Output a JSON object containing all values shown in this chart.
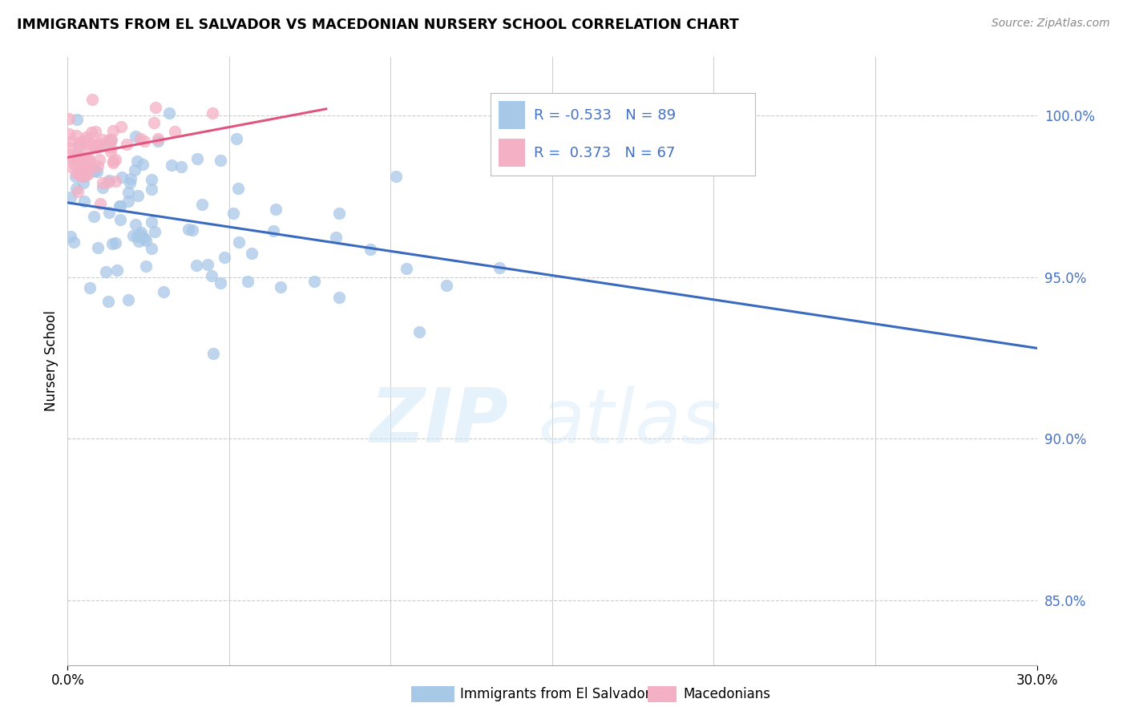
{
  "title": "IMMIGRANTS FROM EL SALVADOR VS MACEDONIAN NURSERY SCHOOL CORRELATION CHART",
  "source": "Source: ZipAtlas.com",
  "ylabel": "Nursery School",
  "legend_label1": "Immigrants from El Salvador",
  "legend_label2": "Macedonians",
  "R1": -0.533,
  "N1": 89,
  "R2": 0.373,
  "N2": 67,
  "color_blue": "#a8c8e8",
  "color_pink": "#f4b0c4",
  "line_blue": "#3a6abf",
  "line_pink": "#e05580",
  "text_color_blue": "#4472c4",
  "xlim": [
    0,
    30
  ],
  "ylim": [
    83.0,
    101.8
  ],
  "yticks": [
    85.0,
    90.0,
    95.0,
    100.0
  ],
  "ytick_labels": [
    "85.0%",
    "90.0%",
    "95.0%",
    "100.0%"
  ],
  "blue_line_x0": 0,
  "blue_line_y0": 97.3,
  "blue_line_x1": 30,
  "blue_line_y1": 92.8,
  "pink_line_x0": 0,
  "pink_line_y0": 98.7,
  "pink_line_x1": 8,
  "pink_line_y1": 100.2
}
